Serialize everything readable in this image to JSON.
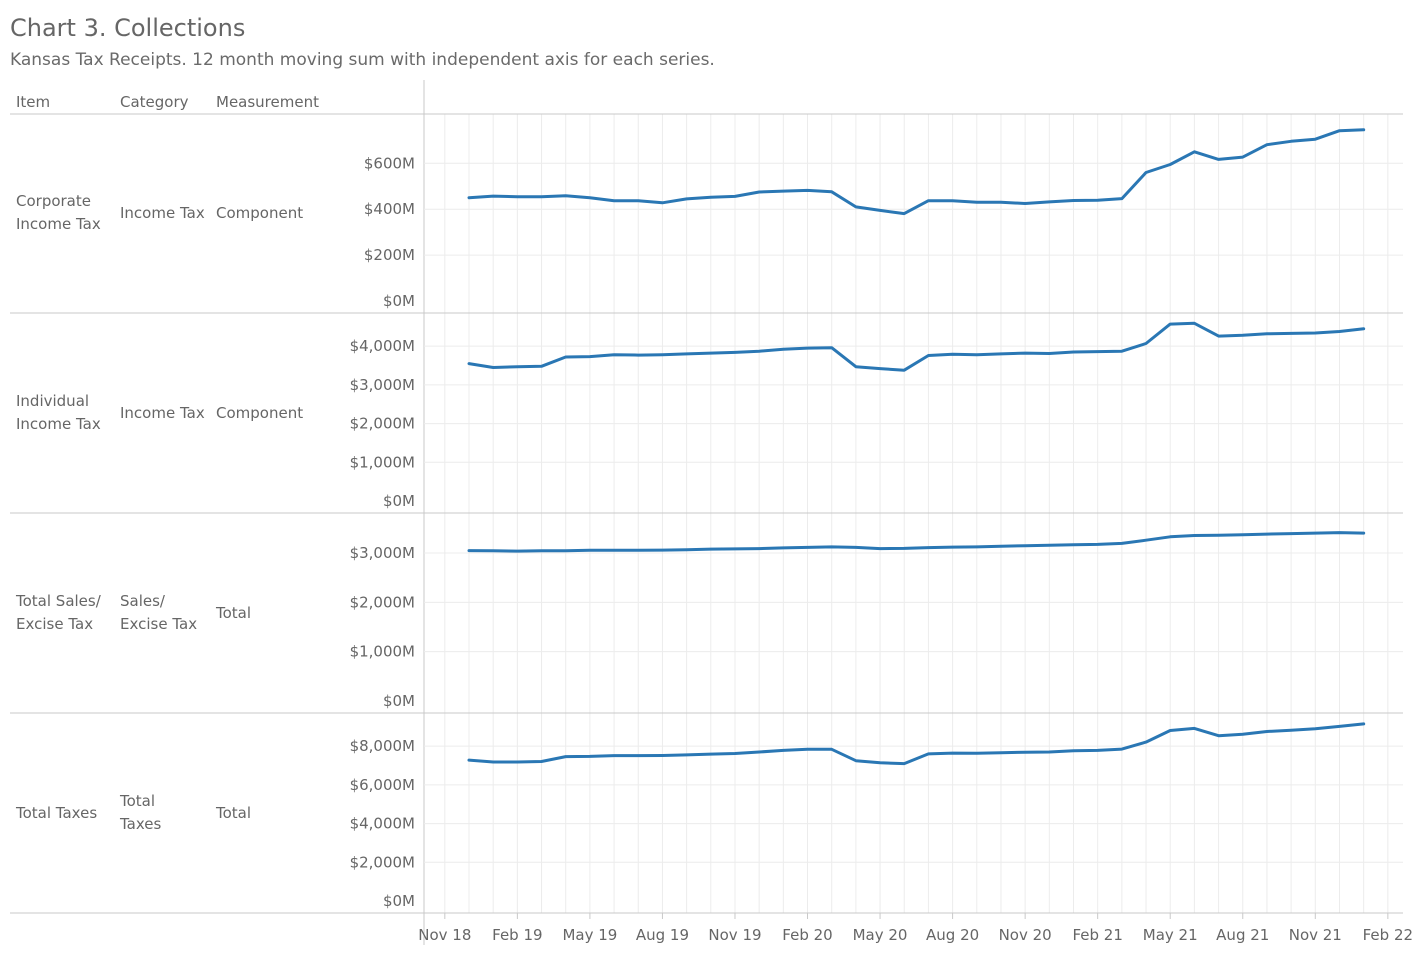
{
  "title": "Chart 3. Collections",
  "subtitle": "Kansas Tax Receipts. 12 month moving sum with independent axis for each series.",
  "headers": {
    "item": "Item",
    "category": "Category",
    "measurement": "Measurement"
  },
  "colors": {
    "line": "#2a77b4",
    "grid": "#ececec",
    "rule": "#c9c9c9",
    "text": "#666666"
  },
  "rows": [
    {
      "item": "Corporate\nIncome Tax",
      "category": "Income Tax",
      "measurement": "Component"
    },
    {
      "item": "Individual\nIncome Tax",
      "category": "Income Tax",
      "measurement": "Component"
    },
    {
      "item": "Total Sales/\nExcise Tax",
      "category": "Sales/\nExcise Tax",
      "measurement": "Total"
    },
    {
      "item": "Total Taxes",
      "category": "Total\nTaxes",
      "measurement": "Total"
    }
  ],
  "chart_data": {
    "type": "line",
    "x_ticks": [
      "Nov 18",
      "Feb 19",
      "May 19",
      "Aug 19",
      "Nov 19",
      "Feb 20",
      "May 20",
      "Aug 20",
      "Nov 20",
      "Feb 21",
      "May 21",
      "Aug 21",
      "Nov 21",
      "Feb 22"
    ],
    "x": [
      "Dec 18",
      "Jan 19",
      "Feb 19",
      "Mar 19",
      "Apr 19",
      "May 19",
      "Jun 19",
      "Jul 19",
      "Aug 19",
      "Sep 19",
      "Oct 19",
      "Nov 19",
      "Dec 19",
      "Jan 20",
      "Feb 20",
      "Mar 20",
      "Apr 20",
      "May 20",
      "Jun 20",
      "Jul 20",
      "Aug 20",
      "Sep 20",
      "Oct 20",
      "Nov 20",
      "Dec 20",
      "Jan 21",
      "Feb 21",
      "Mar 21",
      "Apr 21",
      "May 21",
      "Jun 21",
      "Jul 21",
      "Aug 21",
      "Sep 21",
      "Oct 21",
      "Nov 21",
      "Dec 21",
      "Jan 22"
    ],
    "panels": [
      {
        "ylim": [
          0,
          780
        ],
        "y_ticks": [
          0,
          200,
          400,
          600
        ],
        "y_tick_labels": [
          "$0M",
          "$200M",
          "$400M",
          "$600M"
        ],
        "values": [
          450,
          457,
          454,
          454,
          459,
          450,
          437,
          437,
          428,
          445,
          452,
          456,
          475,
          479,
          482,
          476,
          410,
          395,
          381,
          437,
          437,
          430,
          430,
          425,
          432,
          438,
          439,
          446,
          560,
          595,
          650,
          617,
          627,
          681,
          696,
          705,
          742,
          746
        ]
      },
      {
        "ylim": [
          0,
          4650
        ],
        "y_ticks": [
          0,
          1000,
          2000,
          3000,
          4000
        ],
        "y_tick_labels": [
          "$0M",
          "$1,000M",
          "$2,000M",
          "$3,000M",
          "$4,000M"
        ],
        "values": [
          3550,
          3450,
          3470,
          3480,
          3720,
          3730,
          3780,
          3770,
          3780,
          3800,
          3820,
          3840,
          3870,
          3920,
          3950,
          3960,
          3470,
          3420,
          3380,
          3760,
          3790,
          3780,
          3800,
          3820,
          3810,
          3850,
          3860,
          3870,
          4070,
          4570,
          4590,
          4260,
          4280,
          4320,
          4330,
          4340,
          4380,
          4450
        ]
      },
      {
        "ylim": [
          0,
          3650
        ],
        "y_ticks": [
          0,
          1000,
          2000,
          3000
        ],
        "y_tick_labels": [
          "$0M",
          "$1,000M",
          "$2,000M",
          "$3,000M"
        ],
        "values": [
          3050,
          3045,
          3040,
          3045,
          3045,
          3055,
          3055,
          3058,
          3060,
          3065,
          3080,
          3085,
          3090,
          3105,
          3115,
          3125,
          3115,
          3090,
          3095,
          3110,
          3120,
          3125,
          3140,
          3150,
          3160,
          3170,
          3175,
          3195,
          3260,
          3330,
          3355,
          3360,
          3370,
          3385,
          3395,
          3405,
          3415,
          3405
        ]
      },
      {
        "ylim": [
          0,
          9300
        ],
        "y_ticks": [
          0,
          2000,
          4000,
          6000,
          8000
        ],
        "y_tick_labels": [
          "$0M",
          "$2,000M",
          "$4,000M",
          "$6,000M",
          "$8,000M"
        ],
        "values": [
          7280,
          7180,
          7180,
          7210,
          7460,
          7470,
          7510,
          7510,
          7520,
          7550,
          7590,
          7620,
          7700,
          7780,
          7840,
          7840,
          7250,
          7140,
          7100,
          7600,
          7640,
          7630,
          7660,
          7690,
          7700,
          7760,
          7780,
          7850,
          8210,
          8810,
          8920,
          8540,
          8620,
          8760,
          8820,
          8900,
          9020,
          9150
        ]
      }
    ]
  }
}
